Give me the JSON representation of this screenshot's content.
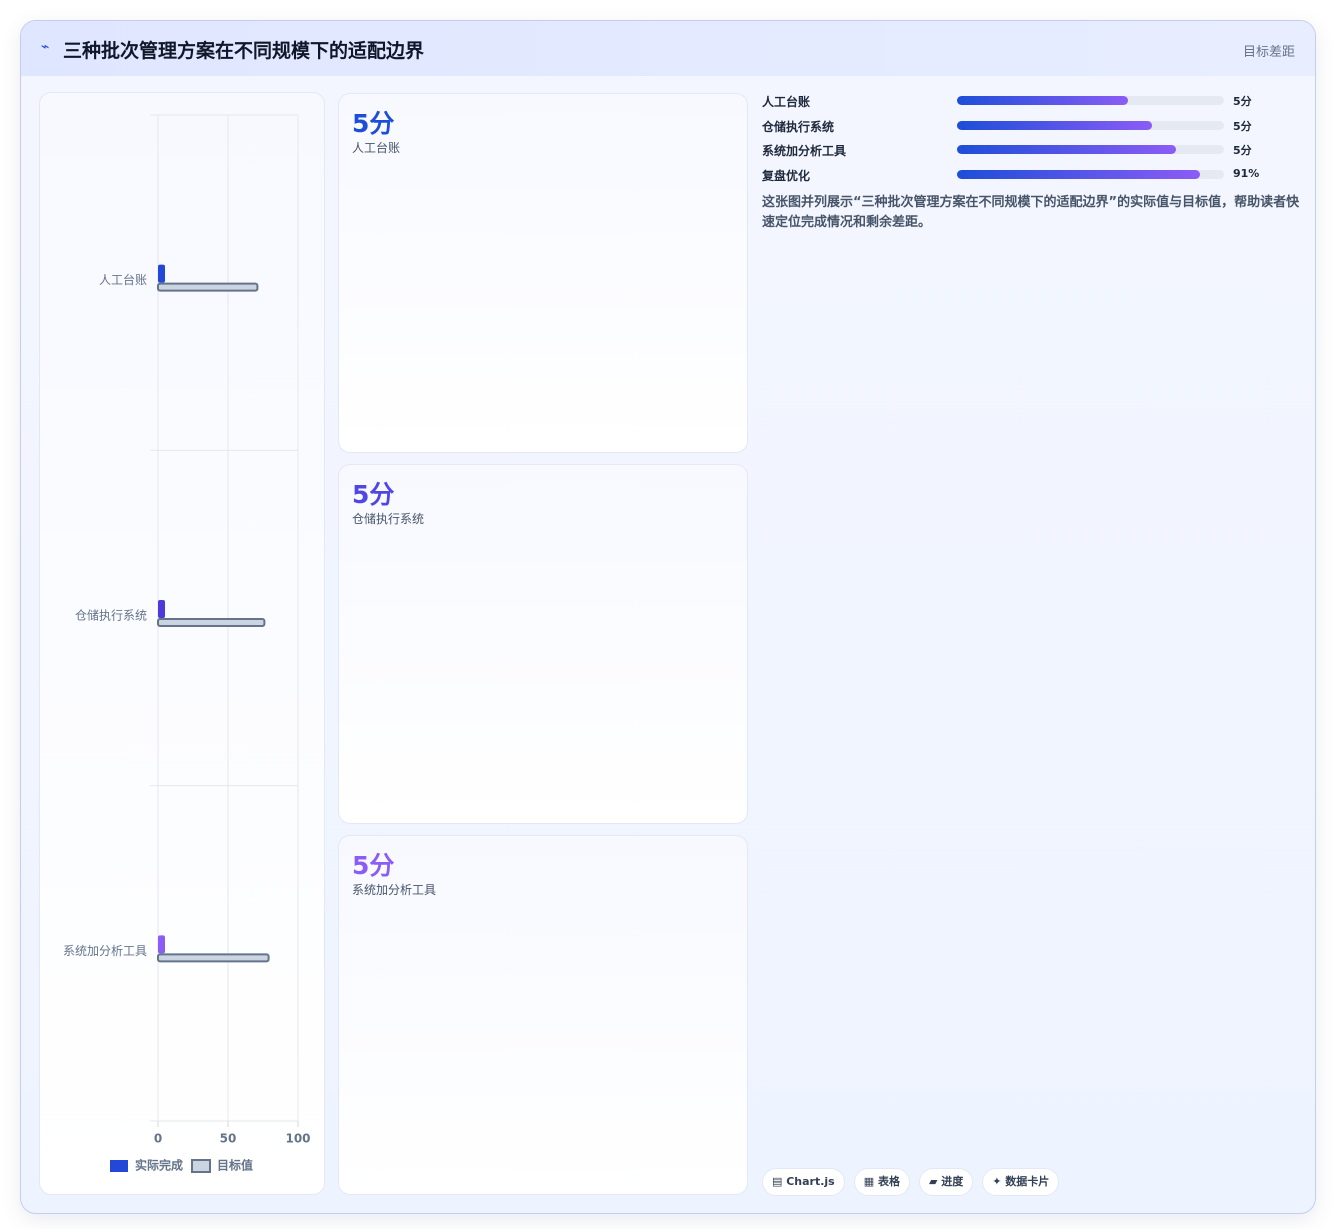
{
  "header": {
    "icon": "⌁",
    "title": "三种批次管理方案在不同规模下的适配边界",
    "tag": "目标差距"
  },
  "chart_data": {
    "type": "bar",
    "orientation": "horizontal",
    "categories": [
      "人工台账",
      "仓储执行系统",
      "系统加分析工具"
    ],
    "series": [
      {
        "name": "实际完成",
        "color": "#2347d6",
        "colors": [
          "#2347d6",
          "#4c3bd9",
          "#8b5cf6"
        ],
        "values": [
          5,
          5,
          5
        ]
      },
      {
        "name": "目标值",
        "color": "#cbd5e1",
        "border": "#64748b",
        "values": [
          71,
          76,
          79
        ]
      }
    ],
    "xlim": [
      0,
      100
    ],
    "xticks": [
      0,
      50,
      100
    ],
    "grid": true,
    "legend": "bottom"
  },
  "kpis": [
    {
      "value": "5分",
      "label": "人工台账",
      "color": "#1d4ed8"
    },
    {
      "value": "5分",
      "label": "仓储执行系统",
      "color": "#4f46e5"
    },
    {
      "value": "5分",
      "label": "系统加分析工具",
      "color": "#8b5cf6"
    }
  ],
  "progress": [
    {
      "name": "人工台账",
      "value_label": "5分",
      "fill": 64
    },
    {
      "name": "仓储执行系统",
      "value_label": "5分",
      "fill": 73
    },
    {
      "name": "系统加分析工具",
      "value_label": "5分",
      "fill": 82
    },
    {
      "name": "复盘优化",
      "value_label": "91%",
      "fill": 91
    }
  ],
  "description": "这张图并列展示“三种批次管理方案在不同规模下的适配边界”的实际值与目标值，帮助读者快速定位完成情况和剩余差距。",
  "chips": [
    "▤ Chart.js",
    "▦ 表格",
    "▰ 进度",
    "✦ 数据卡片"
  ]
}
